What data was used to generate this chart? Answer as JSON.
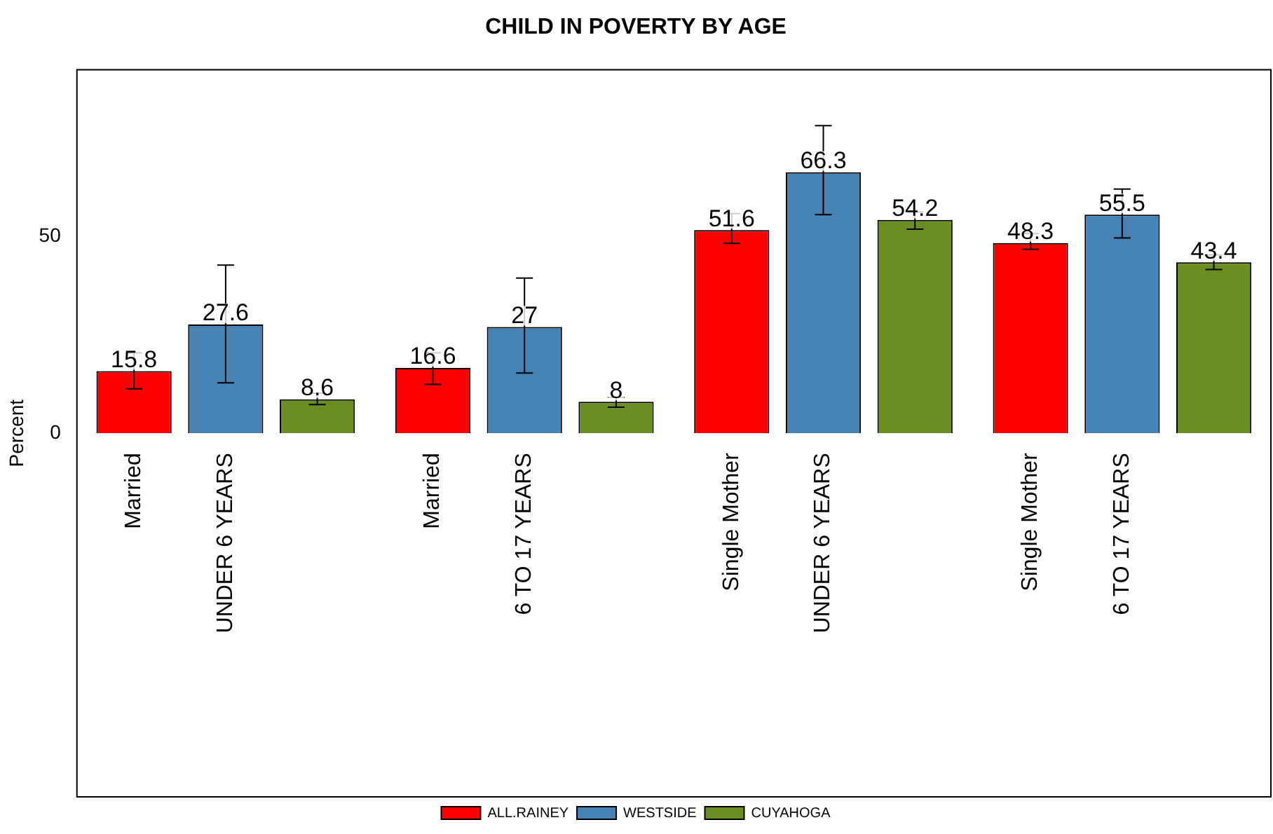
{
  "chart_data": {
    "type": "bar",
    "title": "CHILD IN POVERTY BY AGE",
    "ylabel": "Percent",
    "categories": [
      "Married\nUNDER 6 YEARS",
      "Married\n6 TO 17 YEARS",
      "Single Mother\nUNDER 6 YEARS",
      "Single Mother\n6 TO 17 YEARS"
    ],
    "series": [
      {
        "name": "ALL.RAINEY",
        "color": "#ff0000",
        "values": [
          15.8,
          16.6,
          51.6,
          48.3
        ],
        "errors": [
          [
            11.3,
            20.4
          ],
          [
            12.4,
            20.4
          ],
          [
            48.2,
            55.8
          ],
          [
            46.7,
            50.7
          ]
        ]
      },
      {
        "name": "WESTSIDE",
        "color": "#4682b4",
        "values": [
          27.6,
          27,
          66.3,
          55.5
        ],
        "errors": [
          [
            12.8,
            42.7
          ],
          [
            15.3,
            39.4
          ],
          [
            55.5,
            78.1
          ],
          [
            49.6,
            62
          ]
        ]
      },
      {
        "name": "CUYAHOGA",
        "color": "#6b8e23",
        "values": [
          8.6,
          8,
          54.2,
          43.4
        ],
        "errors": [
          [
            7.3,
            10.2
          ],
          [
            6.6,
            9.1
          ],
          [
            51.8,
            56.2
          ],
          [
            41.6,
            45.3
          ]
        ]
      }
    ],
    "ylim": [
      -92.5,
      92.5
    ],
    "yticks": [
      0,
      50
    ],
    "data_labels": true,
    "grid": false,
    "legend": "bottom"
  }
}
